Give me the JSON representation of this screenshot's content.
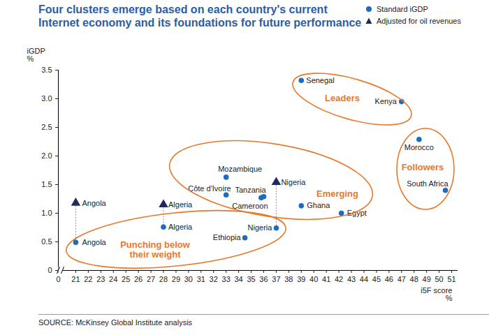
{
  "chart_data": {
    "type": "scatter",
    "title": "Four clusters emerge based on each country's current\nInternet economy and its foundations for future performance",
    "xlabel": "i5F score\n%",
    "ylabel": "iGDP\n%",
    "source": "SOURCE: McKinsey Global Institute analysis",
    "xlim": [
      0,
      51.5
    ],
    "xticks": [
      0,
      21,
      22,
      23,
      24,
      25,
      26,
      27,
      28,
      29,
      30,
      31,
      32,
      33,
      34,
      35,
      36,
      37,
      38,
      39,
      40,
      41,
      42,
      43,
      44,
      45,
      46,
      47,
      48,
      49,
      50,
      51
    ],
    "ylim": [
      0,
      3.5
    ],
    "yticks": [
      0,
      0.5,
      {
        "value": 1,
        "label": "1.0"
      },
      1.5,
      {
        "value": 2,
        "label": "2.0"
      },
      2.5,
      {
        "value": 3,
        "label": "3.0"
      },
      3.5
    ],
    "grid": false,
    "legend": "top-right",
    "series": [
      {
        "name": "Standard iGDP",
        "color": "#1E6BBF",
        "marker": "circle",
        "labels": [
          "Senegal",
          "Kenya",
          "Morocco",
          "South Africa",
          "Mozambique",
          "Côte d'Ivoire",
          "Tanzania",
          "Cameroon",
          "Ghana",
          "Egypt",
          "Nigeria",
          "Ethiopia",
          "Algeria",
          "Angola"
        ],
        "x": [
          39,
          47,
          48.4,
          50.5,
          33,
          33,
          36,
          35.8,
          39,
          42.2,
          37,
          34.5,
          28,
          21
        ],
        "values": [
          3.32,
          2.95,
          2.29,
          1.4,
          1.63,
          1.32,
          1.29,
          1.27,
          1.13,
          1.0,
          0.74,
          0.57,
          0.76,
          0.49
        ]
      },
      {
        "name": "Adjusted for oil revenues",
        "color": "#1F2A5C",
        "marker": "triangle",
        "labels": [
          "Angola",
          "Algeria",
          "Nigeria"
        ],
        "x": [
          21,
          28,
          37
        ],
        "values": [
          1.18,
          1.15,
          1.54
        ]
      }
    ],
    "clusters": [
      {
        "name": "Leaders",
        "color": "#E8782A"
      },
      {
        "name": "Emerging",
        "color": "#E8782A"
      },
      {
        "name": "Followers",
        "color": "#E8782A"
      },
      {
        "name": "Punching below\ntheir weight",
        "color": "#E8782A"
      }
    ]
  }
}
